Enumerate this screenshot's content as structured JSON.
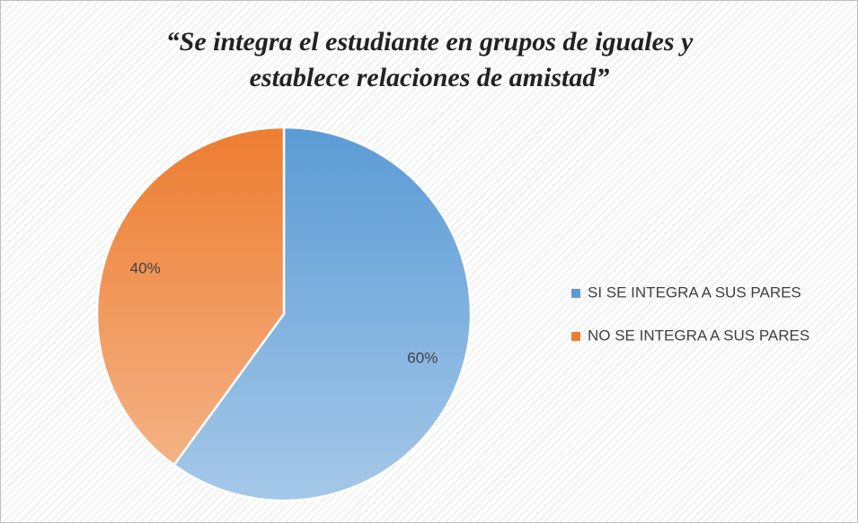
{
  "chart_data": {
    "type": "pie",
    "title": [
      "“Se integra el estudiante en grupos de iguales y",
      "establece relaciones de amistad”"
    ],
    "categories": [
      "SI SE INTEGRA A SUS PARES",
      "NO SE INTEGRA A SUS PARES"
    ],
    "values": [
      60,
      40
    ],
    "value_labels": [
      "60%",
      "40%"
    ],
    "colors": [
      "#5b9bd5",
      "#ed7d31"
    ],
    "legend": "right"
  }
}
